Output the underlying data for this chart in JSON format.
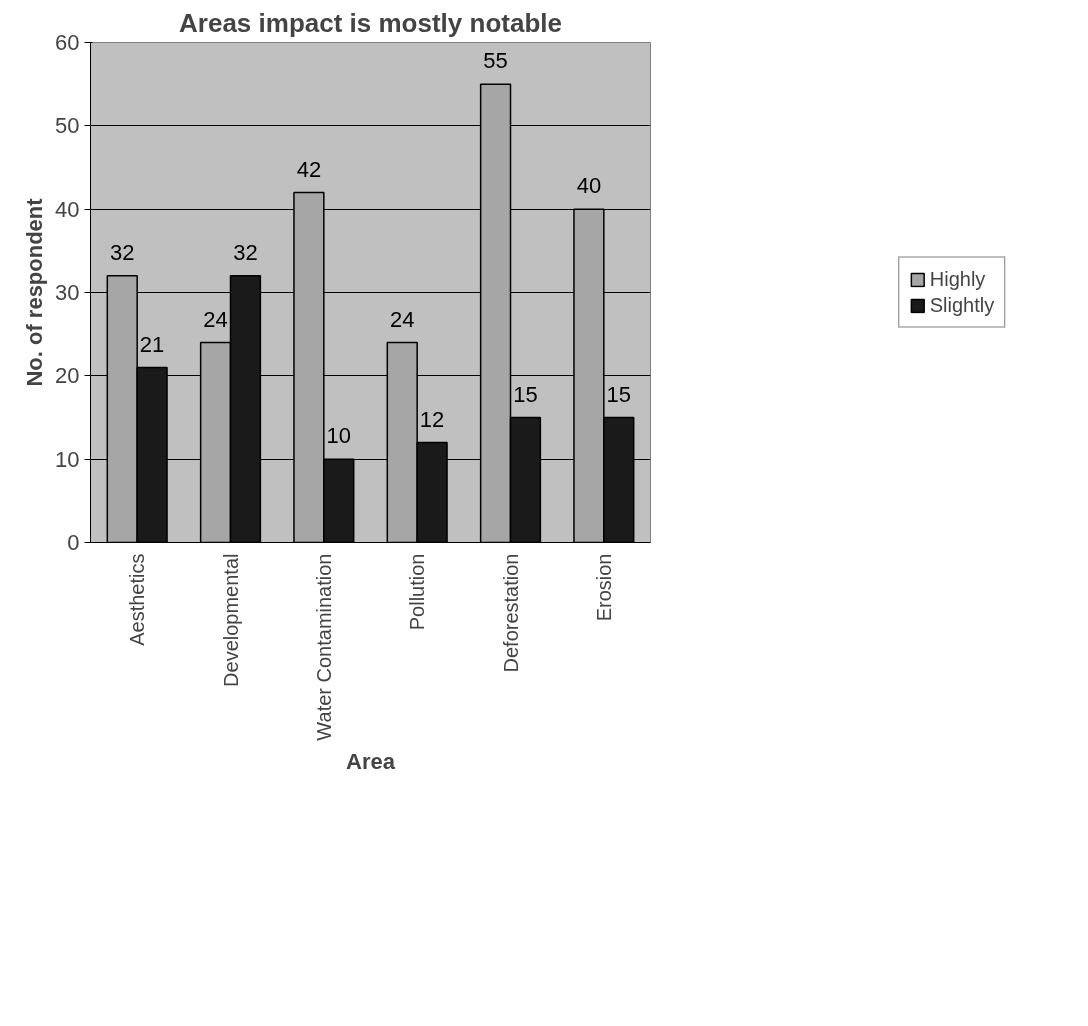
{
  "chart_data": {
    "type": "bar",
    "title": "Areas impact is mostly notable",
    "xlabel": "Area",
    "ylabel": "No. of respondent",
    "categories": [
      "Aesthetics",
      "Developmental",
      "Water Contamination",
      "Pollution",
      "Deforestation",
      "Erosion"
    ],
    "series": [
      {
        "name": "Highly",
        "color": "#a6a6a6",
        "values": [
          32,
          24,
          42,
          24,
          55,
          40
        ]
      },
      {
        "name": "Slightly",
        "color": "#1a1a1a",
        "values": [
          21,
          32,
          10,
          12,
          15,
          15
        ]
      }
    ],
    "ylim": [
      0,
      60
    ],
    "yticks": [
      0,
      10,
      20,
      30,
      40,
      50,
      60
    ],
    "grid": "y",
    "legend": "right",
    "data_labels": true
  }
}
